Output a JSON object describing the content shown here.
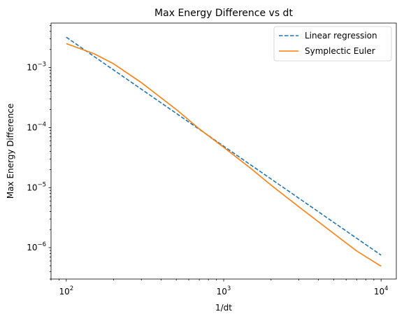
{
  "chart_data": {
    "type": "line",
    "title": "Max Energy Difference vs dt",
    "xlabel": "1/dt",
    "ylabel": "Max Energy Difference",
    "xscale": "log",
    "yscale": "log",
    "xlim": [
      80,
      12500
    ],
    "ylim": [
      3e-07,
      0.0055
    ],
    "grid": false,
    "legend_position": "top-right",
    "x_ticks": [
      {
        "value": 100,
        "mantissa": "10",
        "exponent": "2"
      },
      {
        "value": 1000,
        "mantissa": "10",
        "exponent": "3"
      },
      {
        "value": 10000,
        "mantissa": "10",
        "exponent": "4"
      }
    ],
    "y_ticks": [
      {
        "value": 1e-06,
        "mantissa": "10",
        "exponent": "−6"
      },
      {
        "value": 1e-05,
        "mantissa": "10",
        "exponent": "−5"
      },
      {
        "value": 0.0001,
        "mantissa": "10",
        "exponent": "−4"
      },
      {
        "value": 0.001,
        "mantissa": "10",
        "exponent": "−3"
      }
    ],
    "series": [
      {
        "name": "Linear regression",
        "color": "#1f77b4",
        "style": "dashed",
        "x": [
          100,
          10000
        ],
        "y": [
          0.0032,
          7.5e-07
        ]
      },
      {
        "name": "Symplectic Euler",
        "color": "#ff7f0e",
        "style": "solid",
        "x": [
          100,
          150,
          200,
          300,
          500,
          700,
          1000,
          1500,
          2000,
          3000,
          5000,
          7000,
          10000
        ],
        "y": [
          0.0025,
          0.0017,
          0.00115,
          0.00056,
          0.0002,
          9.5e-05,
          4.7e-05,
          2.05e-05,
          1.1e-05,
          4.8e-06,
          1.72e-06,
          8.8e-07,
          4.9e-07
        ]
      }
    ]
  }
}
